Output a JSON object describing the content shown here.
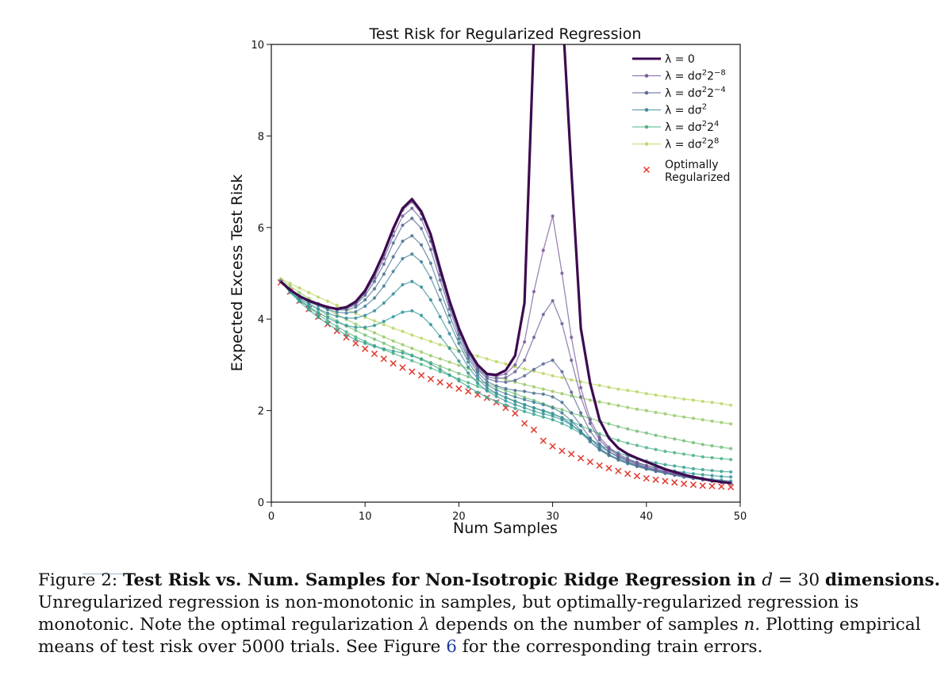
{
  "chart_data": {
    "type": "line",
    "title": "Test Risk for Regularized Regression",
    "xlabel": "Num Samples",
    "ylabel": "Expected Excess Test Risk",
    "xlim": [
      0,
      50
    ],
    "ylim": [
      0,
      10
    ],
    "xticks": [
      0,
      10,
      20,
      30,
      40,
      50
    ],
    "yticks": [
      0,
      2,
      4,
      6,
      8,
      10
    ],
    "grid": false,
    "legend": "top-right",
    "x": [
      1,
      2,
      3,
      4,
      5,
      6,
      7,
      8,
      9,
      10,
      11,
      12,
      13,
      14,
      15,
      16,
      17,
      18,
      19,
      20,
      21,
      22,
      23,
      24,
      25,
      26,
      27,
      28,
      29,
      30,
      31,
      32,
      33,
      34,
      35,
      36,
      37,
      38,
      39,
      40,
      41,
      42,
      43,
      44,
      45,
      46,
      47,
      48,
      49
    ],
    "series": [
      {
        "name": "λ = 0",
        "legend_key": "l0",
        "color": "#3d0a4f",
        "width": 3.2,
        "markers": false,
        "values": [
          4.82,
          4.64,
          4.5,
          4.4,
          4.33,
          4.26,
          4.22,
          4.26,
          4.38,
          4.62,
          5.0,
          5.45,
          5.98,
          6.42,
          6.62,
          6.35,
          5.85,
          5.1,
          4.4,
          3.8,
          3.33,
          3.0,
          2.8,
          2.78,
          2.88,
          3.2,
          4.35,
          10.2,
          10.6,
          10.8,
          10.9,
          7.25,
          3.8,
          2.6,
          1.8,
          1.4,
          1.18,
          1.05,
          0.96,
          0.88,
          0.8,
          0.72,
          0.66,
          0.6,
          0.55,
          0.51,
          0.47,
          0.44,
          0.42
        ]
      },
      {
        "name": "λ = dσ²2⁻⁸",
        "legend_key": "l1",
        "color": "#7a5a9c",
        "width": 1.3,
        "markers": true,
        "values": [
          4.82,
          4.64,
          4.5,
          4.4,
          4.33,
          4.26,
          4.22,
          4.25,
          4.36,
          4.6,
          4.96,
          5.4,
          5.92,
          6.38,
          6.56,
          6.3,
          5.8,
          5.05,
          4.37,
          3.78,
          3.3,
          2.98,
          2.78,
          2.75,
          2.8,
          3.0,
          3.5,
          4.6,
          5.5,
          6.25,
          5.0,
          3.6,
          2.5,
          1.8,
          1.42,
          1.2,
          1.05,
          0.95,
          0.87,
          0.8,
          0.74,
          0.68,
          0.63,
          0.58,
          0.54,
          0.5,
          0.46,
          0.43,
          0.41
        ]
      },
      {
        "name": "",
        "legend_key": "",
        "color": "#6b6199",
        "width": 1.3,
        "markers": true,
        "values": [
          4.82,
          4.64,
          4.5,
          4.4,
          4.33,
          4.26,
          4.22,
          4.24,
          4.34,
          4.57,
          4.9,
          5.32,
          5.82,
          6.25,
          6.42,
          6.18,
          5.7,
          4.97,
          4.3,
          3.73,
          3.26,
          2.94,
          2.74,
          2.7,
          2.72,
          2.85,
          3.1,
          3.6,
          4.1,
          4.4,
          3.9,
          3.1,
          2.3,
          1.72,
          1.36,
          1.16,
          1.02,
          0.92,
          0.84,
          0.77,
          0.71,
          0.66,
          0.61,
          0.57,
          0.53,
          0.5,
          0.46,
          0.43,
          0.41
        ]
      },
      {
        "name": "λ = dσ²2⁻⁴",
        "legend_key": "l2",
        "color": "#5a6a97",
        "width": 1.3,
        "markers": true,
        "values": [
          4.82,
          4.64,
          4.5,
          4.4,
          4.33,
          4.26,
          4.22,
          4.23,
          4.31,
          4.52,
          4.82,
          5.2,
          5.66,
          6.05,
          6.2,
          5.98,
          5.52,
          4.85,
          4.22,
          3.66,
          3.2,
          2.9,
          2.7,
          2.64,
          2.62,
          2.66,
          2.76,
          2.9,
          3.02,
          3.1,
          2.85,
          2.4,
          1.95,
          1.55,
          1.27,
          1.1,
          0.98,
          0.89,
          0.82,
          0.75,
          0.7,
          0.65,
          0.6,
          0.56,
          0.52,
          0.49,
          0.46,
          0.43,
          0.41
        ]
      },
      {
        "name": "",
        "legend_key": "",
        "color": "#4e7495",
        "width": 1.3,
        "markers": true,
        "values": [
          4.82,
          4.64,
          4.5,
          4.4,
          4.32,
          4.25,
          4.2,
          4.2,
          4.26,
          4.42,
          4.66,
          4.98,
          5.36,
          5.7,
          5.82,
          5.62,
          5.22,
          4.64,
          4.08,
          3.57,
          3.14,
          2.84,
          2.63,
          2.54,
          2.48,
          2.44,
          2.42,
          2.38,
          2.36,
          2.3,
          2.18,
          1.95,
          1.68,
          1.4,
          1.18,
          1.04,
          0.94,
          0.86,
          0.79,
          0.73,
          0.68,
          0.63,
          0.59,
          0.55,
          0.52,
          0.49,
          0.46,
          0.43,
          0.41
        ]
      },
      {
        "name": "",
        "legend_key": "",
        "color": "#44809a",
        "width": 1.3,
        "markers": true,
        "values": [
          4.82,
          4.63,
          4.48,
          4.37,
          4.29,
          4.21,
          4.15,
          4.13,
          4.16,
          4.28,
          4.46,
          4.72,
          5.04,
          5.32,
          5.42,
          5.25,
          4.9,
          4.42,
          3.93,
          3.47,
          3.06,
          2.77,
          2.56,
          2.45,
          2.37,
          2.3,
          2.24,
          2.18,
          2.13,
          2.06,
          1.95,
          1.78,
          1.56,
          1.33,
          1.14,
          1.02,
          0.92,
          0.84,
          0.78,
          0.72,
          0.67,
          0.63,
          0.59,
          0.55,
          0.52,
          0.49,
          0.46,
          0.44,
          0.42
        ]
      },
      {
        "name": "λ = dσ²",
        "legend_key": "l3",
        "color": "#3c8e9c",
        "width": 1.3,
        "markers": true,
        "values": [
          4.82,
          4.62,
          4.45,
          4.32,
          4.22,
          4.13,
          4.06,
          4.02,
          4.02,
          4.08,
          4.18,
          4.35,
          4.55,
          4.75,
          4.82,
          4.7,
          4.42,
          4.05,
          3.68,
          3.3,
          2.95,
          2.7,
          2.5,
          2.38,
          2.28,
          2.2,
          2.13,
          2.06,
          2.0,
          1.94,
          1.84,
          1.7,
          1.52,
          1.32,
          1.15,
          1.03,
          0.94,
          0.86,
          0.8,
          0.74,
          0.69,
          0.65,
          0.61,
          0.58,
          0.55,
          0.52,
          0.5,
          0.48,
          0.46
        ]
      },
      {
        "name": "",
        "legend_key": "",
        "color": "#35989a",
        "width": 1.3,
        "markers": true,
        "values": [
          4.82,
          4.6,
          4.42,
          4.27,
          4.14,
          4.03,
          3.93,
          3.86,
          3.82,
          3.82,
          3.86,
          3.95,
          4.05,
          4.15,
          4.18,
          4.08,
          3.88,
          3.62,
          3.36,
          3.08,
          2.82,
          2.6,
          2.43,
          2.31,
          2.21,
          2.13,
          2.06,
          1.99,
          1.93,
          1.88,
          1.8,
          1.68,
          1.54,
          1.38,
          1.22,
          1.1,
          1.0,
          0.92,
          0.86,
          0.8,
          0.76,
          0.72,
          0.68,
          0.65,
          0.62,
          0.6,
          0.58,
          0.56,
          0.55
        ]
      },
      {
        "name": "",
        "legend_key": "",
        "color": "#3aa391",
        "width": 1.3,
        "markers": true,
        "values": [
          4.82,
          4.58,
          4.38,
          4.2,
          4.04,
          3.9,
          3.77,
          3.65,
          3.55,
          3.47,
          3.4,
          3.35,
          3.3,
          3.26,
          3.2,
          3.12,
          3.02,
          2.9,
          2.78,
          2.65,
          2.52,
          2.4,
          2.29,
          2.2,
          2.12,
          2.05,
          1.98,
          1.92,
          1.86,
          1.8,
          1.72,
          1.62,
          1.5,
          1.38,
          1.26,
          1.16,
          1.08,
          1.01,
          0.95,
          0.9,
          0.86,
          0.82,
          0.79,
          0.76,
          0.73,
          0.71,
          0.69,
          0.67,
          0.66
        ]
      },
      {
        "name": "λ = dσ²2⁴",
        "legend_key": "l4",
        "color": "#4fb486",
        "width": 1.3,
        "markers": true,
        "values": [
          4.82,
          4.6,
          4.42,
          4.25,
          4.1,
          3.96,
          3.84,
          3.72,
          3.61,
          3.51,
          3.42,
          3.33,
          3.25,
          3.17,
          3.09,
          3.01,
          2.93,
          2.85,
          2.77,
          2.69,
          2.61,
          2.53,
          2.45,
          2.37,
          2.29,
          2.21,
          2.13,
          2.06,
          1.99,
          1.92,
          1.85,
          1.76,
          1.67,
          1.58,
          1.49,
          1.42,
          1.35,
          1.29,
          1.24,
          1.19,
          1.15,
          1.11,
          1.08,
          1.05,
          1.02,
          0.99,
          0.97,
          0.95,
          0.93
        ]
      },
      {
        "name": "",
        "legend_key": "",
        "color": "#76c07a",
        "width": 1.3,
        "markers": true,
        "values": [
          4.84,
          4.66,
          4.5,
          4.35,
          4.21,
          4.08,
          3.96,
          3.85,
          3.75,
          3.65,
          3.56,
          3.47,
          3.38,
          3.3,
          3.21,
          3.13,
          3.05,
          2.97,
          2.89,
          2.81,
          2.74,
          2.66,
          2.59,
          2.51,
          2.44,
          2.37,
          2.29,
          2.22,
          2.15,
          2.08,
          2.02,
          1.95,
          1.89,
          1.83,
          1.77,
          1.71,
          1.65,
          1.6,
          1.55,
          1.51,
          1.46,
          1.42,
          1.38,
          1.34,
          1.3,
          1.26,
          1.23,
          1.2,
          1.17
        ]
      },
      {
        "name": "",
        "legend_key": "",
        "color": "#9ccb6c",
        "width": 1.3,
        "markers": true,
        "values": [
          4.86,
          4.72,
          4.58,
          4.45,
          4.33,
          4.21,
          4.1,
          3.99,
          3.89,
          3.79,
          3.7,
          3.61,
          3.52,
          3.44,
          3.36,
          3.28,
          3.2,
          3.13,
          3.06,
          2.99,
          2.92,
          2.86,
          2.8,
          2.74,
          2.68,
          2.62,
          2.57,
          2.52,
          2.47,
          2.42,
          2.37,
          2.32,
          2.28,
          2.23,
          2.19,
          2.15,
          2.11,
          2.07,
          2.03,
          2.0,
          1.96,
          1.93,
          1.89,
          1.86,
          1.83,
          1.8,
          1.77,
          1.74,
          1.71
        ]
      },
      {
        "name": "λ = dσ²2⁸",
        "legend_key": "l5",
        "color": "#bcd868",
        "width": 1.3,
        "markers": true,
        "values": [
          4.88,
          4.78,
          4.68,
          4.58,
          4.48,
          4.39,
          4.3,
          4.21,
          4.12,
          4.04,
          3.96,
          3.88,
          3.8,
          3.73,
          3.65,
          3.58,
          3.51,
          3.44,
          3.38,
          3.31,
          3.25,
          3.19,
          3.13,
          3.07,
          3.02,
          2.96,
          2.91,
          2.86,
          2.81,
          2.76,
          2.72,
          2.67,
          2.63,
          2.59,
          2.55,
          2.51,
          2.47,
          2.44,
          2.41,
          2.37,
          2.34,
          2.31,
          2.28,
          2.25,
          2.23,
          2.2,
          2.18,
          2.15,
          2.12
        ]
      },
      {
        "name": "Optimally\nRegularized",
        "legend_key": "opt",
        "color": "#e03b2e",
        "width": 0,
        "markers": "x",
        "values": [
          4.8,
          4.6,
          4.4,
          4.22,
          4.05,
          3.89,
          3.74,
          3.6,
          3.47,
          3.35,
          3.24,
          3.13,
          3.03,
          2.94,
          2.85,
          2.77,
          2.69,
          2.62,
          2.55,
          2.48,
          2.42,
          2.35,
          2.28,
          2.18,
          2.06,
          1.94,
          1.72,
          1.58,
          1.34,
          1.22,
          1.12,
          1.05,
          0.96,
          0.88,
          0.8,
          0.74,
          0.68,
          0.62,
          0.57,
          0.52,
          0.49,
          0.46,
          0.43,
          0.4,
          0.38,
          0.36,
          0.35,
          0.34,
          0.33
        ]
      }
    ],
    "legend_labels": {
      "l0": {
        "pre": "λ = 0",
        "sup": ""
      },
      "l1": {
        "pre": "λ = dσ",
        "sup2": "2",
        "mid": "2",
        "sup": "−8"
      },
      "l2": {
        "pre": "λ = dσ",
        "sup2": "2",
        "mid": "2",
        "sup": "−4"
      },
      "l3": {
        "pre": "λ = dσ",
        "sup2": "2",
        "mid": "",
        "sup": ""
      },
      "l4": {
        "pre": "λ = dσ",
        "sup2": "2",
        "mid": "2",
        "sup": "4"
      },
      "l5": {
        "pre": "λ = dσ",
        "sup2": "2",
        "mid": "2",
        "sup": "8"
      },
      "opt": {
        "line1": "Optimally",
        "line2": "Regularized"
      }
    }
  },
  "caption": {
    "label": "Figure 2:",
    "bold": "Test Risk vs.  Num.  Samples for Non-Isotropic Ridge Regression in",
    "bold_math": "d",
    "bold_eq": " = 30",
    "bold2": "dimensions.",
    "text1": "Unregularized regression is non-monotonic in samples, but optimally-regularized regression is monotonic. Note the optimal regularization",
    "lambda": "λ",
    "text2": "depends on the number of samples",
    "n": "n.",
    "text3": "Plotting empirical means of test risk over 5000 trials. See Figure",
    "ref": "6",
    "text4": "for the corresponding train errors."
  }
}
